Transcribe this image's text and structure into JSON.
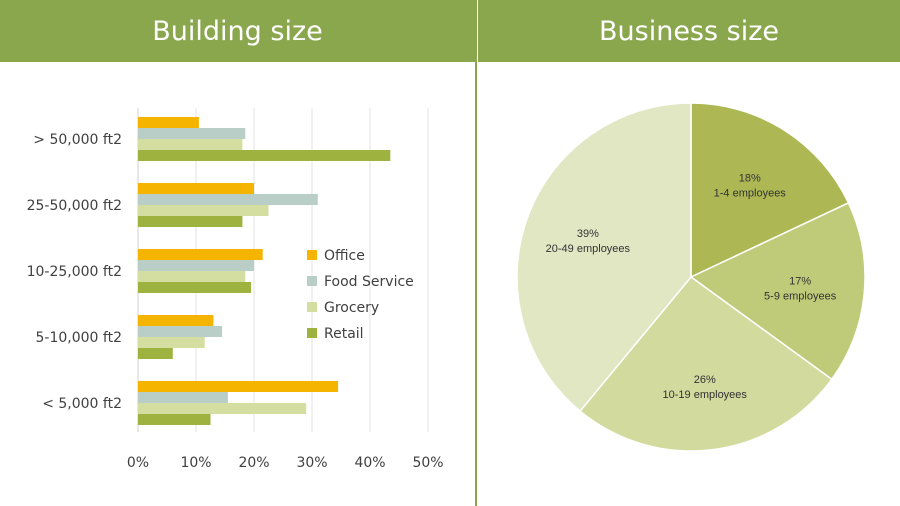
{
  "panels": {
    "left_title": "Building size",
    "right_title": "Business size"
  },
  "chart_data": [
    {
      "type": "bar",
      "orientation": "horizontal",
      "title": "Building size",
      "categories": [
        "> 50,000 ft2",
        "25-50,000 ft2",
        "10-25,000 ft2",
        "5-10,000 ft2",
        "< 5,000 ft2"
      ],
      "series": [
        {
          "name": "Office",
          "color": "#f5b400",
          "values": [
            10.5,
            20,
            21.5,
            13,
            34.5
          ]
        },
        {
          "name": "Food Service",
          "color": "#b9cec6",
          "values": [
            18.5,
            31,
            20,
            14.5,
            15.5
          ]
        },
        {
          "name": "Grocery",
          "color": "#d4dea0",
          "values": [
            18,
            22.5,
            18.5,
            11.5,
            29
          ]
        },
        {
          "name": "Retail",
          "color": "#9eb33f",
          "values": [
            43.5,
            18,
            19.5,
            6,
            12.5
          ]
        }
      ],
      "xlim": [
        0,
        50
      ],
      "xticks": [
        "0%",
        "10%",
        "20%",
        "30%",
        "40%",
        "50%"
      ],
      "grid": true,
      "legend": "inside-right"
    },
    {
      "type": "pie",
      "title": "Business size",
      "slices": [
        {
          "label": "1-4 employees",
          "value": 18,
          "pct_label": "18%",
          "color": "#adb854"
        },
        {
          "label": "5-9 employees",
          "value": 17,
          "pct_label": "17%",
          "color": "#c0cb7a"
        },
        {
          "label": "10-19 employees",
          "value": 26,
          "pct_label": "26%",
          "color": "#d2da9e"
        },
        {
          "label": "20-49 employees",
          "value": 39,
          "pct_label": "39%",
          "color": "#e1e6c3"
        }
      ],
      "start_angle": "12 o'clock",
      "direction": "clockwise"
    }
  ]
}
